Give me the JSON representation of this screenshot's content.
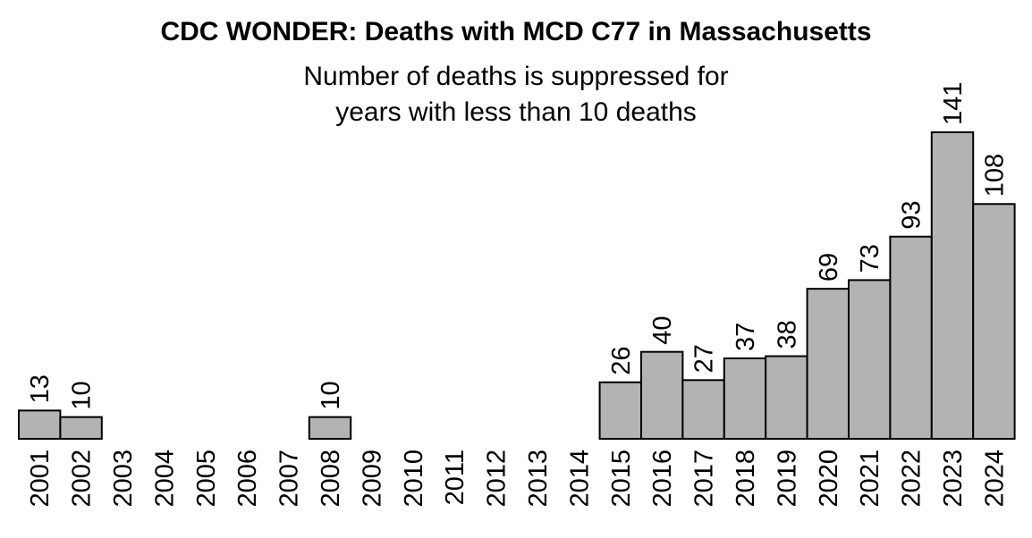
{
  "chart_data": {
    "type": "bar",
    "title": "CDC WONDER: Deaths with MCD C77 in Massachusetts",
    "subtitle_lines": [
      "Number of deaths is suppressed for",
      "years with less than 10 deaths"
    ],
    "xlabel": "",
    "ylabel": "",
    "categories": [
      "2001",
      "2002",
      "2003",
      "2004",
      "2005",
      "2006",
      "2007",
      "2008",
      "2009",
      "2010",
      "2011",
      "2012",
      "2013",
      "2014",
      "2015",
      "2016",
      "2017",
      "2018",
      "2019",
      "2020",
      "2021",
      "2022",
      "2023",
      "2024"
    ],
    "values": [
      13,
      10,
      null,
      null,
      null,
      null,
      null,
      10,
      null,
      null,
      null,
      null,
      null,
      null,
      26,
      40,
      27,
      37,
      38,
      69,
      73,
      93,
      141,
      108
    ],
    "ylim": [
      0,
      141
    ],
    "grid": false,
    "bar_color": "#b3b3b3",
    "border_color": "#000000"
  }
}
